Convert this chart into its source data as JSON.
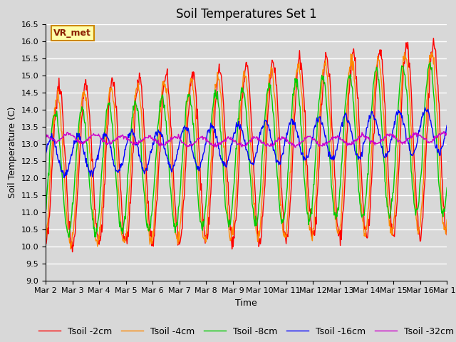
{
  "title": "Soil Temperatures Set 1",
  "xlabel": "Time",
  "ylabel": "Soil Temperature (C)",
  "ylim": [
    9.0,
    16.5
  ],
  "yticks": [
    9.0,
    9.5,
    10.0,
    10.5,
    11.0,
    11.5,
    12.0,
    12.5,
    13.0,
    13.5,
    14.0,
    14.5,
    15.0,
    15.5,
    16.0,
    16.5
  ],
  "xtick_labels": [
    "Mar 2",
    "Mar 3",
    "Mar 4",
    "Mar 5",
    "Mar 6",
    "Mar 7",
    "Mar 8",
    "Mar 9",
    "Mar 10",
    "Mar 11",
    "Mar 12",
    "Mar 13",
    "Mar 14",
    "Mar 15",
    "Mar 16",
    "Mar 17"
  ],
  "legend_label": "VR_met",
  "series_colors": [
    "#ff0000",
    "#ff8800",
    "#00cc00",
    "#0000ff",
    "#cc00cc"
  ],
  "series_labels": [
    "Tsoil -2cm",
    "Tsoil -4cm",
    "Tsoil -8cm",
    "Tsoil -16cm",
    "Tsoil -32cm"
  ],
  "bg_color": "#d8d8d8",
  "plot_bg_color": "#d8d8d8",
  "grid_color": "#ffffff",
  "title_fontsize": 12,
  "axis_label_fontsize": 9,
  "tick_fontsize": 8,
  "legend_fontsize": 9
}
